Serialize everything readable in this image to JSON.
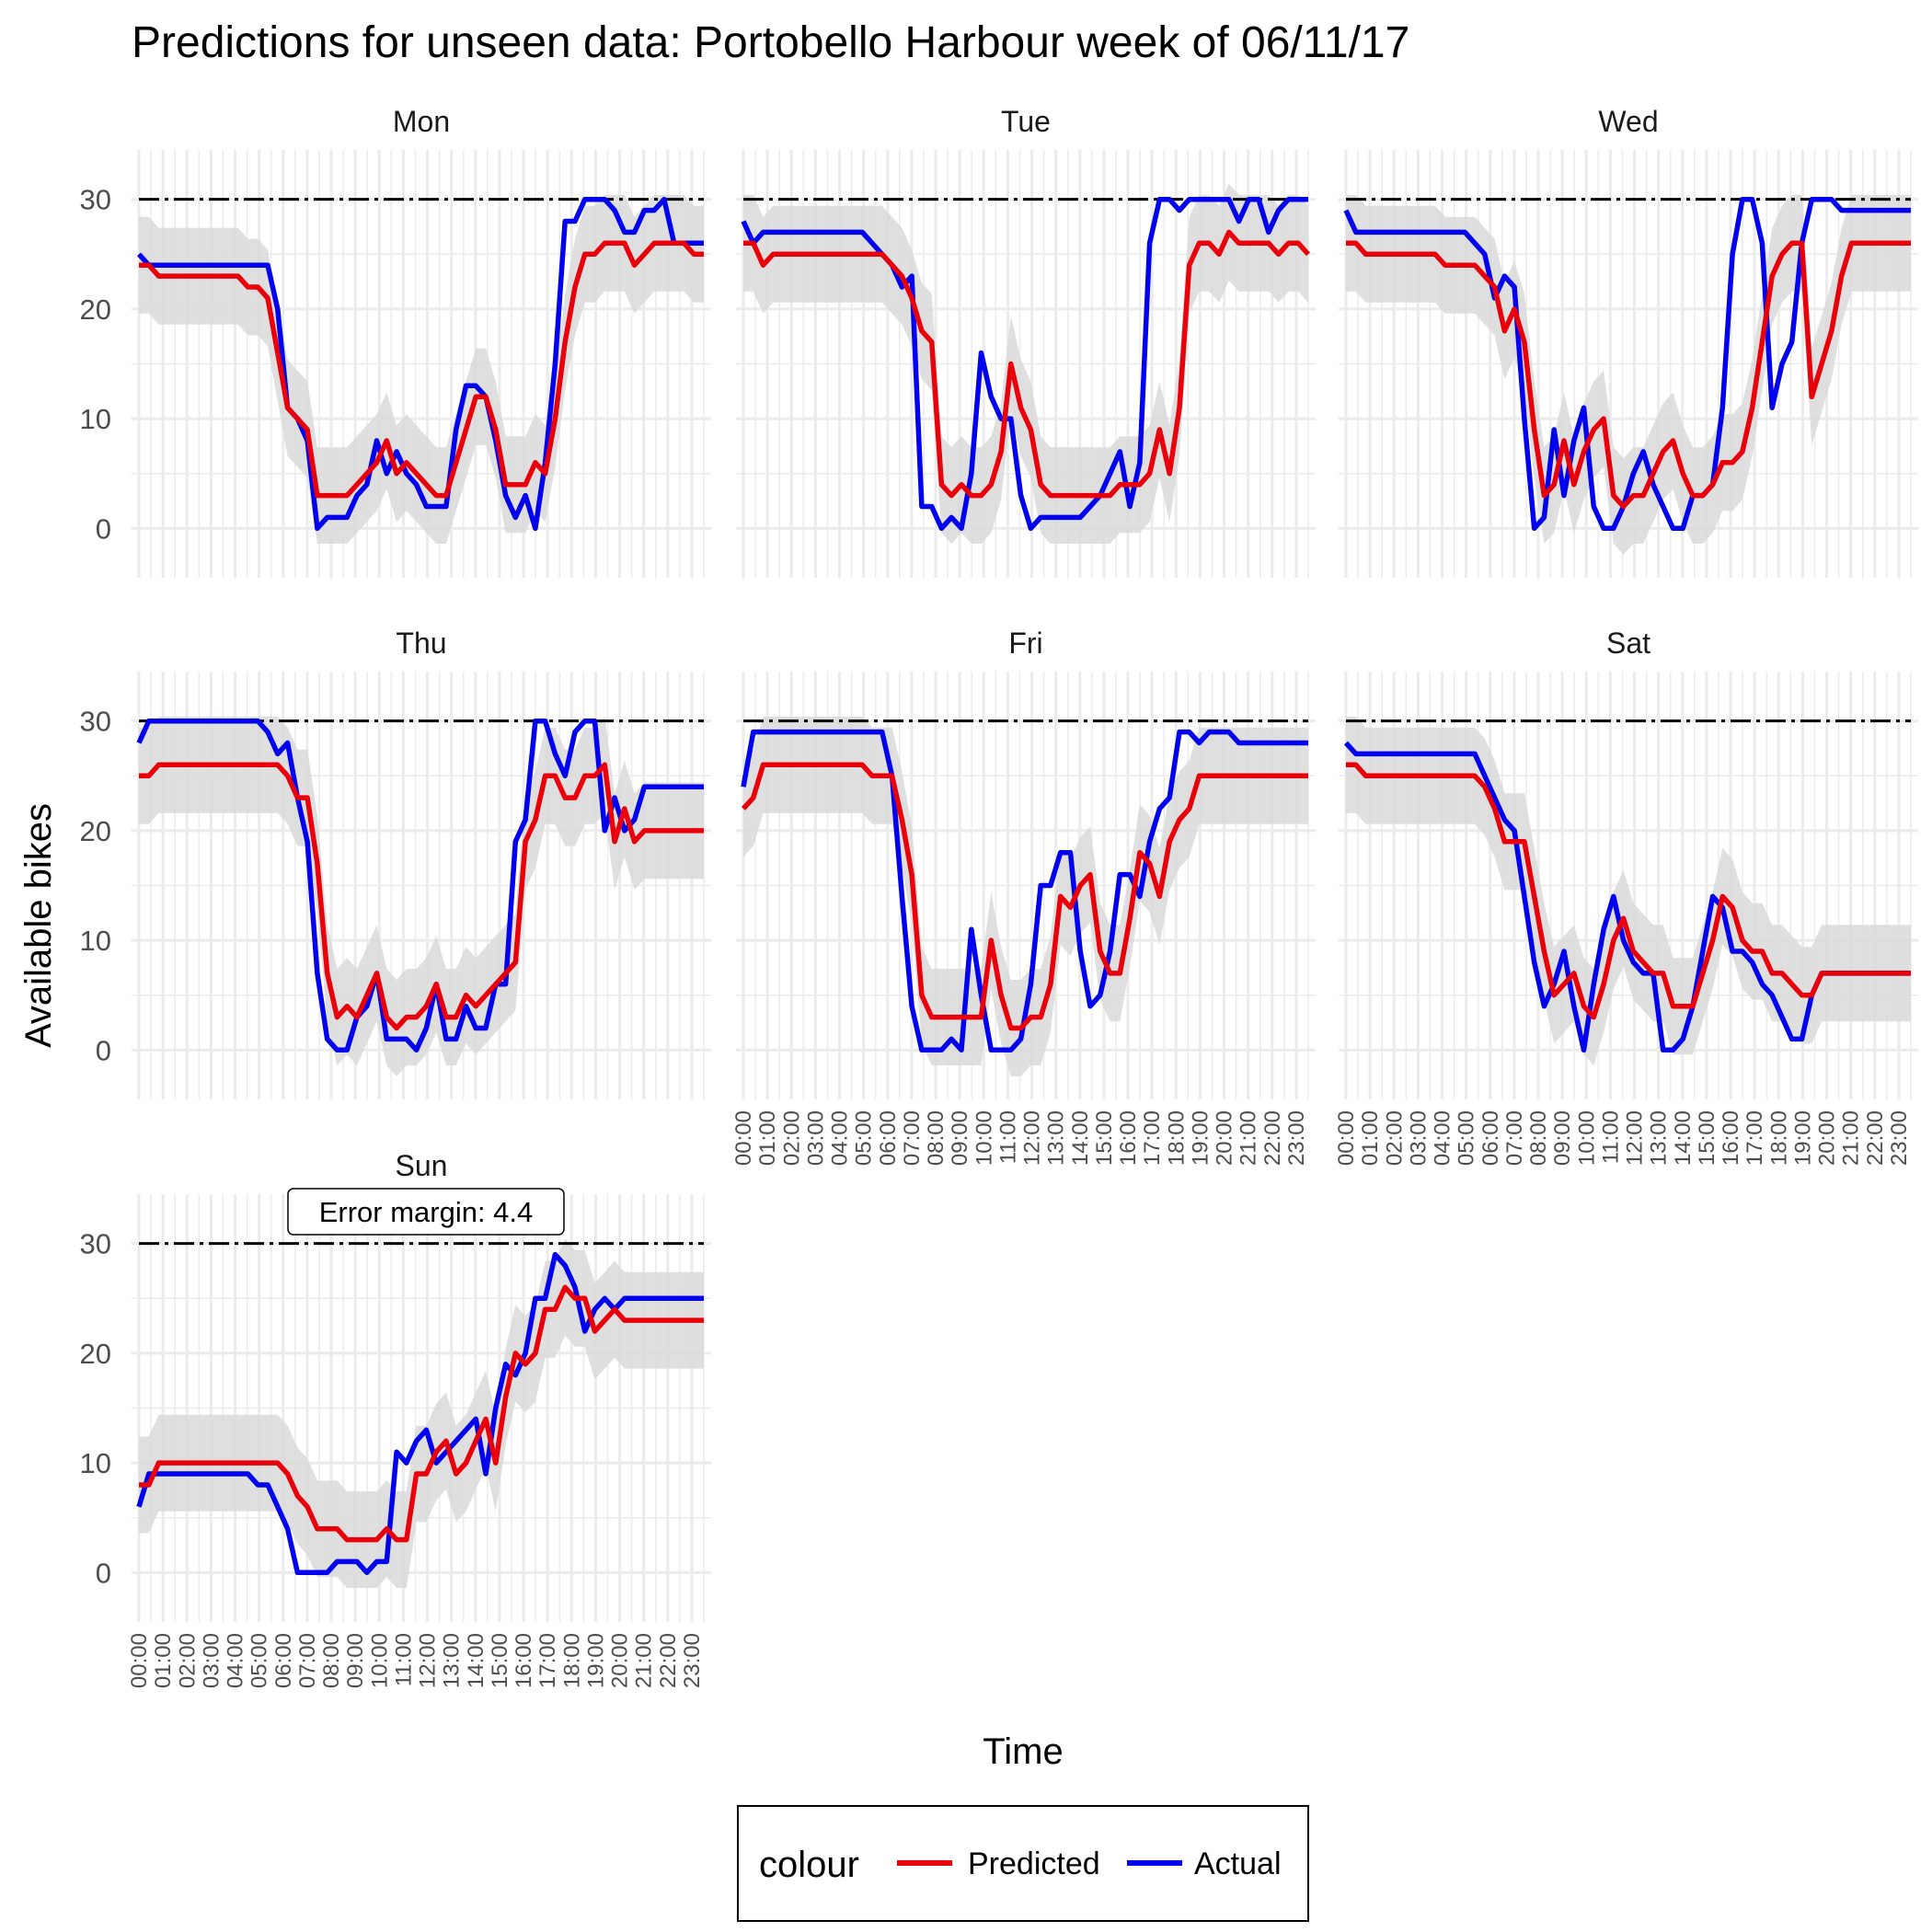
{
  "chart_data": {
    "type": "line",
    "title": "Predictions for unseen data: Portobello Harbour week of 06/11/17",
    "xlabel": "Time",
    "ylabel": "Available bikes",
    "ylim": [
      -4.5,
      34.5
    ],
    "y_ticks": [
      0,
      10,
      20,
      30
    ],
    "x_tick_labels": [
      "00:00",
      "01:00",
      "02:00",
      "03:00",
      "04:00",
      "05:00",
      "06:00",
      "07:00",
      "08:00",
      "09:00",
      "10:00",
      "11:00",
      "12:00",
      "13:00",
      "14:00",
      "15:00",
      "16:00",
      "17:00",
      "18:00",
      "19:00",
      "20:00",
      "21:00",
      "22:00",
      "23:00"
    ],
    "x_step_hours": 0.5,
    "capacity_line": 30,
    "error_margin": 4.4,
    "annotation": "Error margin: 4.4",
    "legend": {
      "title": "colour",
      "position": "bottom",
      "entries": [
        {
          "name": "Predicted",
          "color": "#e8000b"
        },
        {
          "name": "Actual",
          "color": "#0000ee"
        }
      ]
    },
    "colors": {
      "predicted": "#e8000b",
      "actual": "#0000ee",
      "ribbon": "#d9d9d9",
      "grid": "#ebebeb"
    },
    "panels": [
      {
        "label": "Mon",
        "predicted": [
          24,
          24,
          23,
          23,
          23,
          23,
          23,
          23,
          23,
          23,
          23,
          22,
          22,
          21,
          16,
          11,
          10,
          9,
          3,
          3,
          3,
          3,
          4,
          5,
          6,
          8,
          5,
          6,
          5,
          4,
          3,
          3,
          6,
          9,
          12,
          12,
          9,
          4,
          4,
          4,
          6,
          5,
          10,
          17,
          22,
          25,
          25,
          26,
          26,
          26,
          24,
          25,
          26,
          26,
          26,
          26,
          25,
          25
        ],
        "actual": [
          25,
          24,
          24,
          24,
          24,
          24,
          24,
          24,
          24,
          24,
          24,
          24,
          24,
          24,
          20,
          11,
          10,
          8,
          0,
          1,
          1,
          1,
          3,
          4,
          8,
          5,
          7,
          5,
          4,
          2,
          2,
          2,
          9,
          13,
          13,
          12,
          8,
          3,
          1,
          3,
          0,
          6,
          15,
          28,
          28,
          30,
          30,
          30,
          29,
          27,
          27,
          29,
          29,
          30,
          26,
          26,
          26,
          26
        ]
      },
      {
        "label": "Tue",
        "predicted": [
          26,
          26,
          24,
          25,
          25,
          25,
          25,
          25,
          25,
          25,
          25,
          25,
          25,
          25,
          25,
          24,
          23,
          21,
          18,
          17,
          4,
          3,
          4,
          3,
          3,
          4,
          7,
          15,
          11,
          9,
          4,
          3,
          3,
          3,
          3,
          3,
          3,
          3,
          4,
          4,
          4,
          5,
          9,
          5,
          11,
          24,
          26,
          26,
          25,
          27,
          26,
          26,
          26,
          26,
          25,
          26,
          26,
          25
        ],
        "actual": [
          28,
          26,
          27,
          27,
          27,
          27,
          27,
          27,
          27,
          27,
          27,
          27,
          27,
          26,
          25,
          24,
          22,
          23,
          2,
          2,
          0,
          1,
          0,
          5,
          16,
          12,
          10,
          10,
          3,
          0,
          1,
          1,
          1,
          1,
          1,
          2,
          3,
          5,
          7,
          2,
          6,
          26,
          30,
          30,
          29,
          30,
          30,
          30,
          30,
          30,
          28,
          30,
          30,
          27,
          29,
          30,
          30,
          30
        ]
      },
      {
        "label": "Wed",
        "predicted": [
          26,
          26,
          25,
          25,
          25,
          25,
          25,
          25,
          25,
          25,
          24,
          24,
          24,
          24,
          23,
          22,
          18,
          20,
          17,
          9,
          3,
          4,
          8,
          4,
          7,
          9,
          10,
          3,
          2,
          3,
          3,
          5,
          7,
          8,
          5,
          3,
          3,
          4,
          6,
          6,
          7,
          11,
          17,
          23,
          25,
          26,
          26,
          12,
          15,
          18,
          23,
          26,
          26,
          26,
          26,
          26,
          26,
          26
        ],
        "actual": [
          29,
          27,
          27,
          27,
          27,
          27,
          27,
          27,
          27,
          27,
          27,
          27,
          27,
          26,
          25,
          21,
          23,
          22,
          10,
          0,
          1,
          9,
          3,
          8,
          11,
          2,
          0,
          0,
          2,
          5,
          7,
          4,
          2,
          0,
          0,
          3,
          3,
          4,
          11,
          25,
          30,
          30,
          26,
          11,
          15,
          17,
          26,
          30,
          30,
          30,
          29,
          29,
          29,
          29,
          29,
          29,
          29,
          29
        ]
      },
      {
        "label": "Thu",
        "predicted": [
          25,
          25,
          26,
          26,
          26,
          26,
          26,
          26,
          26,
          26,
          26,
          26,
          26,
          26,
          26,
          25,
          23,
          23,
          17,
          7,
          3,
          4,
          3,
          5,
          7,
          3,
          2,
          3,
          3,
          4,
          6,
          3,
          3,
          5,
          4,
          5,
          6,
          7,
          8,
          19,
          21,
          25,
          25,
          23,
          23,
          25,
          25,
          26,
          19,
          22,
          19,
          20,
          20,
          20,
          20,
          20,
          20,
          20
        ],
        "actual": [
          28,
          30,
          30,
          30,
          30,
          30,
          30,
          30,
          30,
          30,
          30,
          30,
          30,
          29,
          27,
          28,
          23,
          19,
          7,
          1,
          0,
          0,
          3,
          4,
          7,
          1,
          1,
          1,
          0,
          2,
          6,
          1,
          1,
          4,
          2,
          2,
          6,
          6,
          19,
          21,
          30,
          30,
          27,
          25,
          29,
          30,
          30,
          20,
          23,
          20,
          21,
          24,
          24,
          24,
          24,
          24,
          24,
          24
        ]
      },
      {
        "label": "Fri",
        "predicted": [
          22,
          23,
          26,
          26,
          26,
          26,
          26,
          26,
          26,
          26,
          26,
          26,
          26,
          25,
          25,
          25,
          21,
          16,
          5,
          3,
          3,
          3,
          3,
          3,
          3,
          10,
          5,
          2,
          2,
          3,
          3,
          6,
          14,
          13,
          15,
          16,
          9,
          7,
          7,
          12,
          18,
          17,
          14,
          19,
          21,
          22,
          25,
          25,
          25,
          25,
          25,
          25,
          25,
          25,
          25,
          25,
          25,
          25
        ],
        "actual": [
          24,
          29,
          29,
          29,
          29,
          29,
          29,
          29,
          29,
          29,
          29,
          29,
          29,
          29,
          29,
          25,
          14,
          4,
          0,
          0,
          0,
          1,
          0,
          11,
          5,
          0,
          0,
          0,
          1,
          6,
          15,
          15,
          18,
          18,
          9,
          4,
          5,
          9,
          16,
          16,
          14,
          19,
          22,
          23,
          29,
          29,
          28,
          29,
          29,
          29,
          28,
          28,
          28,
          28,
          28,
          28,
          28,
          28
        ]
      },
      {
        "label": "Sat",
        "predicted": [
          26,
          26,
          25,
          25,
          25,
          25,
          25,
          25,
          25,
          25,
          25,
          25,
          25,
          25,
          24,
          22,
          19,
          19,
          19,
          14,
          9,
          5,
          6,
          7,
          4,
          3,
          6,
          10,
          12,
          9,
          8,
          7,
          7,
          4,
          4,
          4,
          7,
          10,
          14,
          13,
          10,
          9,
          9,
          7,
          7,
          6,
          5,
          5,
          7,
          7,
          7,
          7,
          7,
          7,
          7,
          7,
          7,
          7
        ],
        "actual": [
          28,
          27,
          27,
          27,
          27,
          27,
          27,
          27,
          27,
          27,
          27,
          27,
          27,
          27,
          25,
          23,
          21,
          20,
          14,
          8,
          4,
          6,
          9,
          4,
          0,
          6,
          11,
          14,
          10,
          8,
          7,
          7,
          0,
          0,
          1,
          4,
          9,
          14,
          13,
          9,
          9,
          8,
          6,
          5,
          3,
          1,
          1,
          5,
          7,
          7,
          7,
          7,
          7,
          7,
          7,
          7,
          7,
          7
        ]
      },
      {
        "label": "Sun",
        "predicted": [
          8,
          8,
          10,
          10,
          10,
          10,
          10,
          10,
          10,
          10,
          10,
          10,
          10,
          10,
          10,
          9,
          7,
          6,
          4,
          4,
          4,
          3,
          3,
          3,
          3,
          4,
          3,
          3,
          9,
          9,
          11,
          12,
          9,
          10,
          12,
          14,
          10,
          16,
          20,
          19,
          20,
          24,
          24,
          26,
          25,
          25,
          22,
          23,
          24,
          23,
          23,
          23,
          23,
          23,
          23,
          23,
          23,
          23
        ],
        "actual": [
          6,
          9,
          9,
          9,
          9,
          9,
          9,
          9,
          9,
          9,
          9,
          9,
          8,
          8,
          6,
          4,
          0,
          0,
          0,
          0,
          1,
          1,
          1,
          0,
          1,
          1,
          11,
          10,
          12,
          13,
          10,
          11,
          12,
          13,
          14,
          9,
          15,
          19,
          18,
          20,
          25,
          25,
          29,
          28,
          26,
          22,
          24,
          25,
          24,
          25,
          25,
          25,
          25,
          25,
          25,
          25,
          25,
          25
        ]
      }
    ]
  }
}
